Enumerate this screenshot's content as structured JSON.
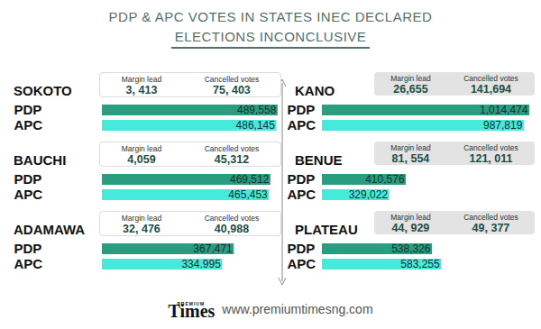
{
  "title": [
    "PDP & APC VOTES IN STATES INEC DECLARED",
    "ELECTIONS INCONCLUSIVE"
  ],
  "source": "www.premiumtimesng.com",
  "logo": {
    "small": "PREMIUM",
    "large": "Times"
  },
  "chart_data": [
    {
      "type": "bar",
      "orientation": "horizontal",
      "title": "SOKOTO",
      "categories": [
        "PDP",
        "APC"
      ],
      "values": [
        489558,
        486145
      ],
      "value_labels": [
        "489,558",
        "486,145"
      ],
      "colors": [
        "#2a9d80",
        "#45eadb"
      ],
      "data_labels": true,
      "tick_labels": "y",
      "xlim": [
        0,
        500000
      ],
      "annotations": [
        {
          "label": "Margin lead",
          "value": 3413,
          "value_label": "3, 413"
        },
        {
          "label": "Cancelled votes",
          "value": 75403,
          "value_label": "75, 403"
        }
      ]
    },
    {
      "type": "bar",
      "orientation": "horizontal",
      "title": "BAUCHI",
      "categories": [
        "PDP",
        "APC"
      ],
      "values": [
        469512,
        465453
      ],
      "value_labels": [
        "469,512",
        "465,453"
      ],
      "colors": [
        "#2a9d80",
        "#45eadb"
      ],
      "data_labels": true,
      "tick_labels": "y",
      "xlim": [
        0,
        500000
      ],
      "annotations": [
        {
          "label": "Margin lead",
          "value": 4059,
          "value_label": "4,059"
        },
        {
          "label": "Cancelled votes",
          "value": 45312,
          "value_label": "45,312"
        }
      ]
    },
    {
      "type": "bar",
      "orientation": "horizontal",
      "title": "ADAMAWA",
      "categories": [
        "PDP",
        "APC"
      ],
      "values": [
        367471,
        334995
      ],
      "value_labels": [
        "367,471",
        "334.995"
      ],
      "colors": [
        "#2a9d80",
        "#45eadb"
      ],
      "data_labels": true,
      "tick_labels": "y",
      "xlim": [
        0,
        500000
      ],
      "annotations": [
        {
          "label": "Margin lead",
          "value": 32476,
          "value_label": "32, 476"
        },
        {
          "label": "Cancelled votes",
          "value": 40988,
          "value_label": "40,988"
        }
      ]
    },
    {
      "type": "bar",
      "orientation": "horizontal",
      "title": "KANO",
      "categories": [
        "PDP",
        "APC"
      ],
      "values": [
        1014474,
        987819
      ],
      "value_labels": [
        "1,014,474",
        "987,819"
      ],
      "colors": [
        "#2a9d80",
        "#45eadb"
      ],
      "data_labels": true,
      "tick_labels": "y",
      "xlim": [
        0,
        1050000
      ],
      "annotations": [
        {
          "label": "Margin lead",
          "value": 26655,
          "value_label": "26,655"
        },
        {
          "label": "Cancelled votes",
          "value": 141694,
          "value_label": "141,694"
        }
      ]
    },
    {
      "type": "bar",
      "orientation": "horizontal",
      "title": "BENUE",
      "categories": [
        "PDP",
        "APC"
      ],
      "values": [
        410576,
        329022
      ],
      "value_labels": [
        "410,576",
        "329,022"
      ],
      "colors": [
        "#2a9d80",
        "#45eadb"
      ],
      "data_labels": true,
      "tick_labels": "y",
      "xlim": [
        0,
        1050000
      ],
      "annotations": [
        {
          "label": "Margin lead",
          "value": 81554,
          "value_label": "81, 554"
        },
        {
          "label": "Cancelled votes",
          "value": 121011,
          "value_label": "121, 011"
        }
      ]
    },
    {
      "type": "bar",
      "orientation": "horizontal",
      "title": "PLATEAU",
      "categories": [
        "PDP",
        "APC"
      ],
      "values": [
        538326,
        583255
      ],
      "value_labels": [
        "538,326",
        "583,255"
      ],
      "colors": [
        "#2a9d80",
        "#45eadb"
      ],
      "data_labels": true,
      "tick_labels": "y",
      "xlim": [
        0,
        1050000
      ],
      "annotations": [
        {
          "label": "Margin lead",
          "value": 44929,
          "value_label": "44, 929"
        },
        {
          "label": "Cancelled votes",
          "value": 49377,
          "value_label": "49, 377"
        }
      ]
    }
  ]
}
